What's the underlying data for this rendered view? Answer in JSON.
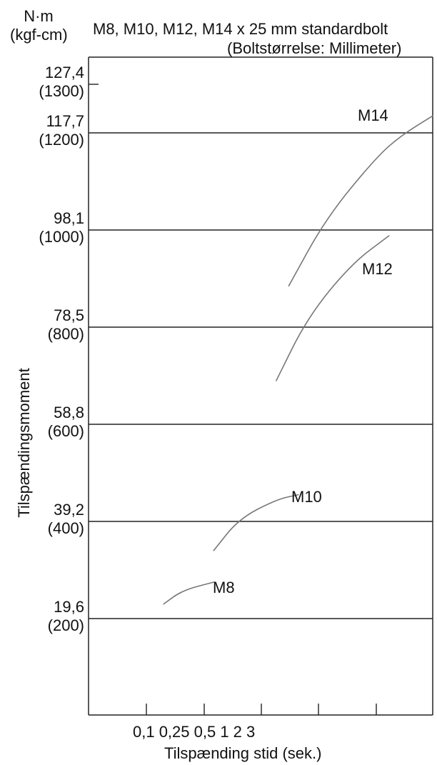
{
  "chart_data": {
    "type": "line",
    "title_line1": "M8, M10, M12, M14 x 25 mm standardbolt",
    "title_line2": "(Boltstørrelse: Millimeter)",
    "y_unit_top": "N·m",
    "y_unit_bottom": "(kgf-cm)",
    "ylabel": "Tilspændingsmoment",
    "xlabel": "Tilspænding stid (sek.)",
    "ylim": [
      0,
      1300
    ],
    "y_ticks": [
      {
        "value": 1300,
        "nm": "127,4",
        "kgf": "(1300)"
      },
      {
        "value": 1200,
        "nm": "117,7",
        "kgf": "(1200)"
      },
      {
        "value": 1000,
        "nm": "98,1",
        "kgf": "(1000)"
      },
      {
        "value": 800,
        "nm": "78,5",
        "kgf": "(800)"
      },
      {
        "value": 600,
        "nm": "58,8",
        "kgf": "(600)"
      },
      {
        "value": 400,
        "nm": "39,2",
        "kgf": "(400)"
      },
      {
        "value": 200,
        "nm": "19,6",
        "kgf": "(200)"
      }
    ],
    "gridlines": [
      1200,
      1000,
      800,
      600,
      400,
      200
    ],
    "x_tick_labels": "0,1 0,25 0,5 1 2 3",
    "series": [
      {
        "name": "M8",
        "points": [
          [
            1.2,
            230
          ],
          [
            1.5,
            258
          ],
          [
            2.0,
            275
          ]
        ]
      },
      {
        "name": "M10",
        "points": [
          [
            2.0,
            340
          ],
          [
            2.4,
            405
          ],
          [
            3.0,
            445
          ],
          [
            3.35,
            455
          ]
        ]
      },
      {
        "name": "M12",
        "points": [
          [
            3.0,
            690
          ],
          [
            3.5,
            820
          ],
          [
            4.2,
            930
          ],
          [
            4.8,
            988
          ]
        ]
      },
      {
        "name": "M14",
        "points": [
          [
            3.2,
            885
          ],
          [
            3.8,
            1025
          ],
          [
            4.6,
            1150
          ],
          [
            5.0,
            1195
          ],
          [
            5.5,
            1235
          ]
        ]
      }
    ],
    "xlim": [
      0,
      5.5
    ]
  }
}
